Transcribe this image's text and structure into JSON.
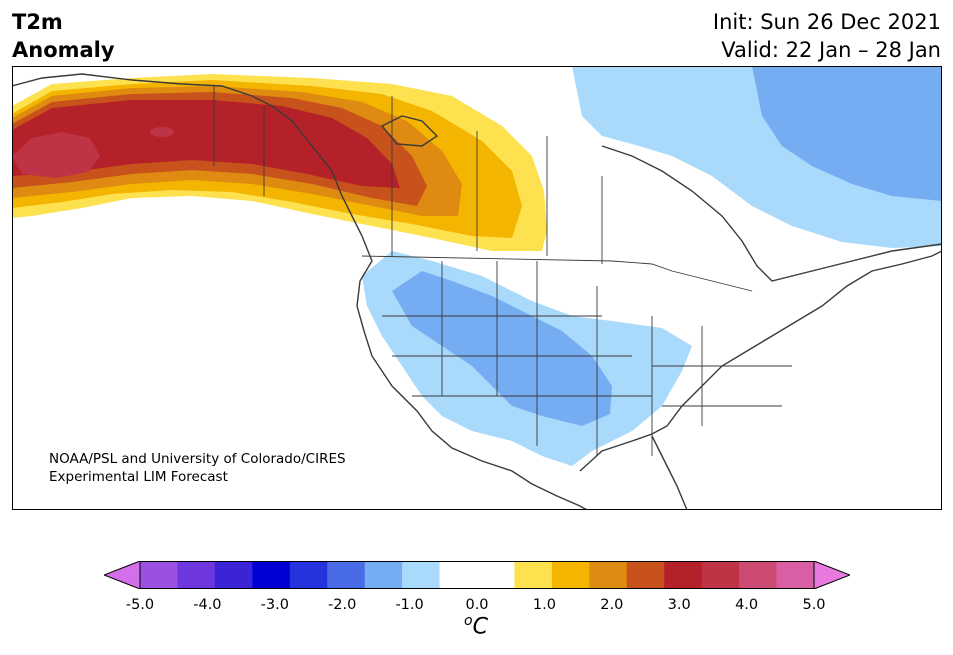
{
  "title": {
    "line1": "T2m",
    "line2": "Anomaly",
    "init": "Init: Sun 26 Dec 2021",
    "valid": "Valid: 22 Jan – 28 Jan"
  },
  "credit": {
    "line1": "NOAA/PSL and University of Colorado/CIRES",
    "line2": "Experimental LIM Forecast"
  },
  "colorbar": {
    "unit_base": "o",
    "unit_letter": "C",
    "ticks": [
      "-5.0",
      "-4.0",
      "-3.0",
      "-2.0",
      "-1.0",
      "0.0",
      "1.0",
      "2.0",
      "3.0",
      "4.0",
      "5.0"
    ],
    "colors": [
      "#d46fea",
      "#9a50e0",
      "#6e37de",
      "#3a24d6",
      "#0000d4",
      "#2533df",
      "#4a6be6",
      "#75acf2",
      "#a9d9fb",
      "#ffffff",
      "#ffffff",
      "#fde14e",
      "#f4b500",
      "#df8a10",
      "#c7521b",
      "#b52128",
      "#be3345",
      "#cb4b72",
      "#d95ea4",
      "#e87ade"
    ]
  }
}
